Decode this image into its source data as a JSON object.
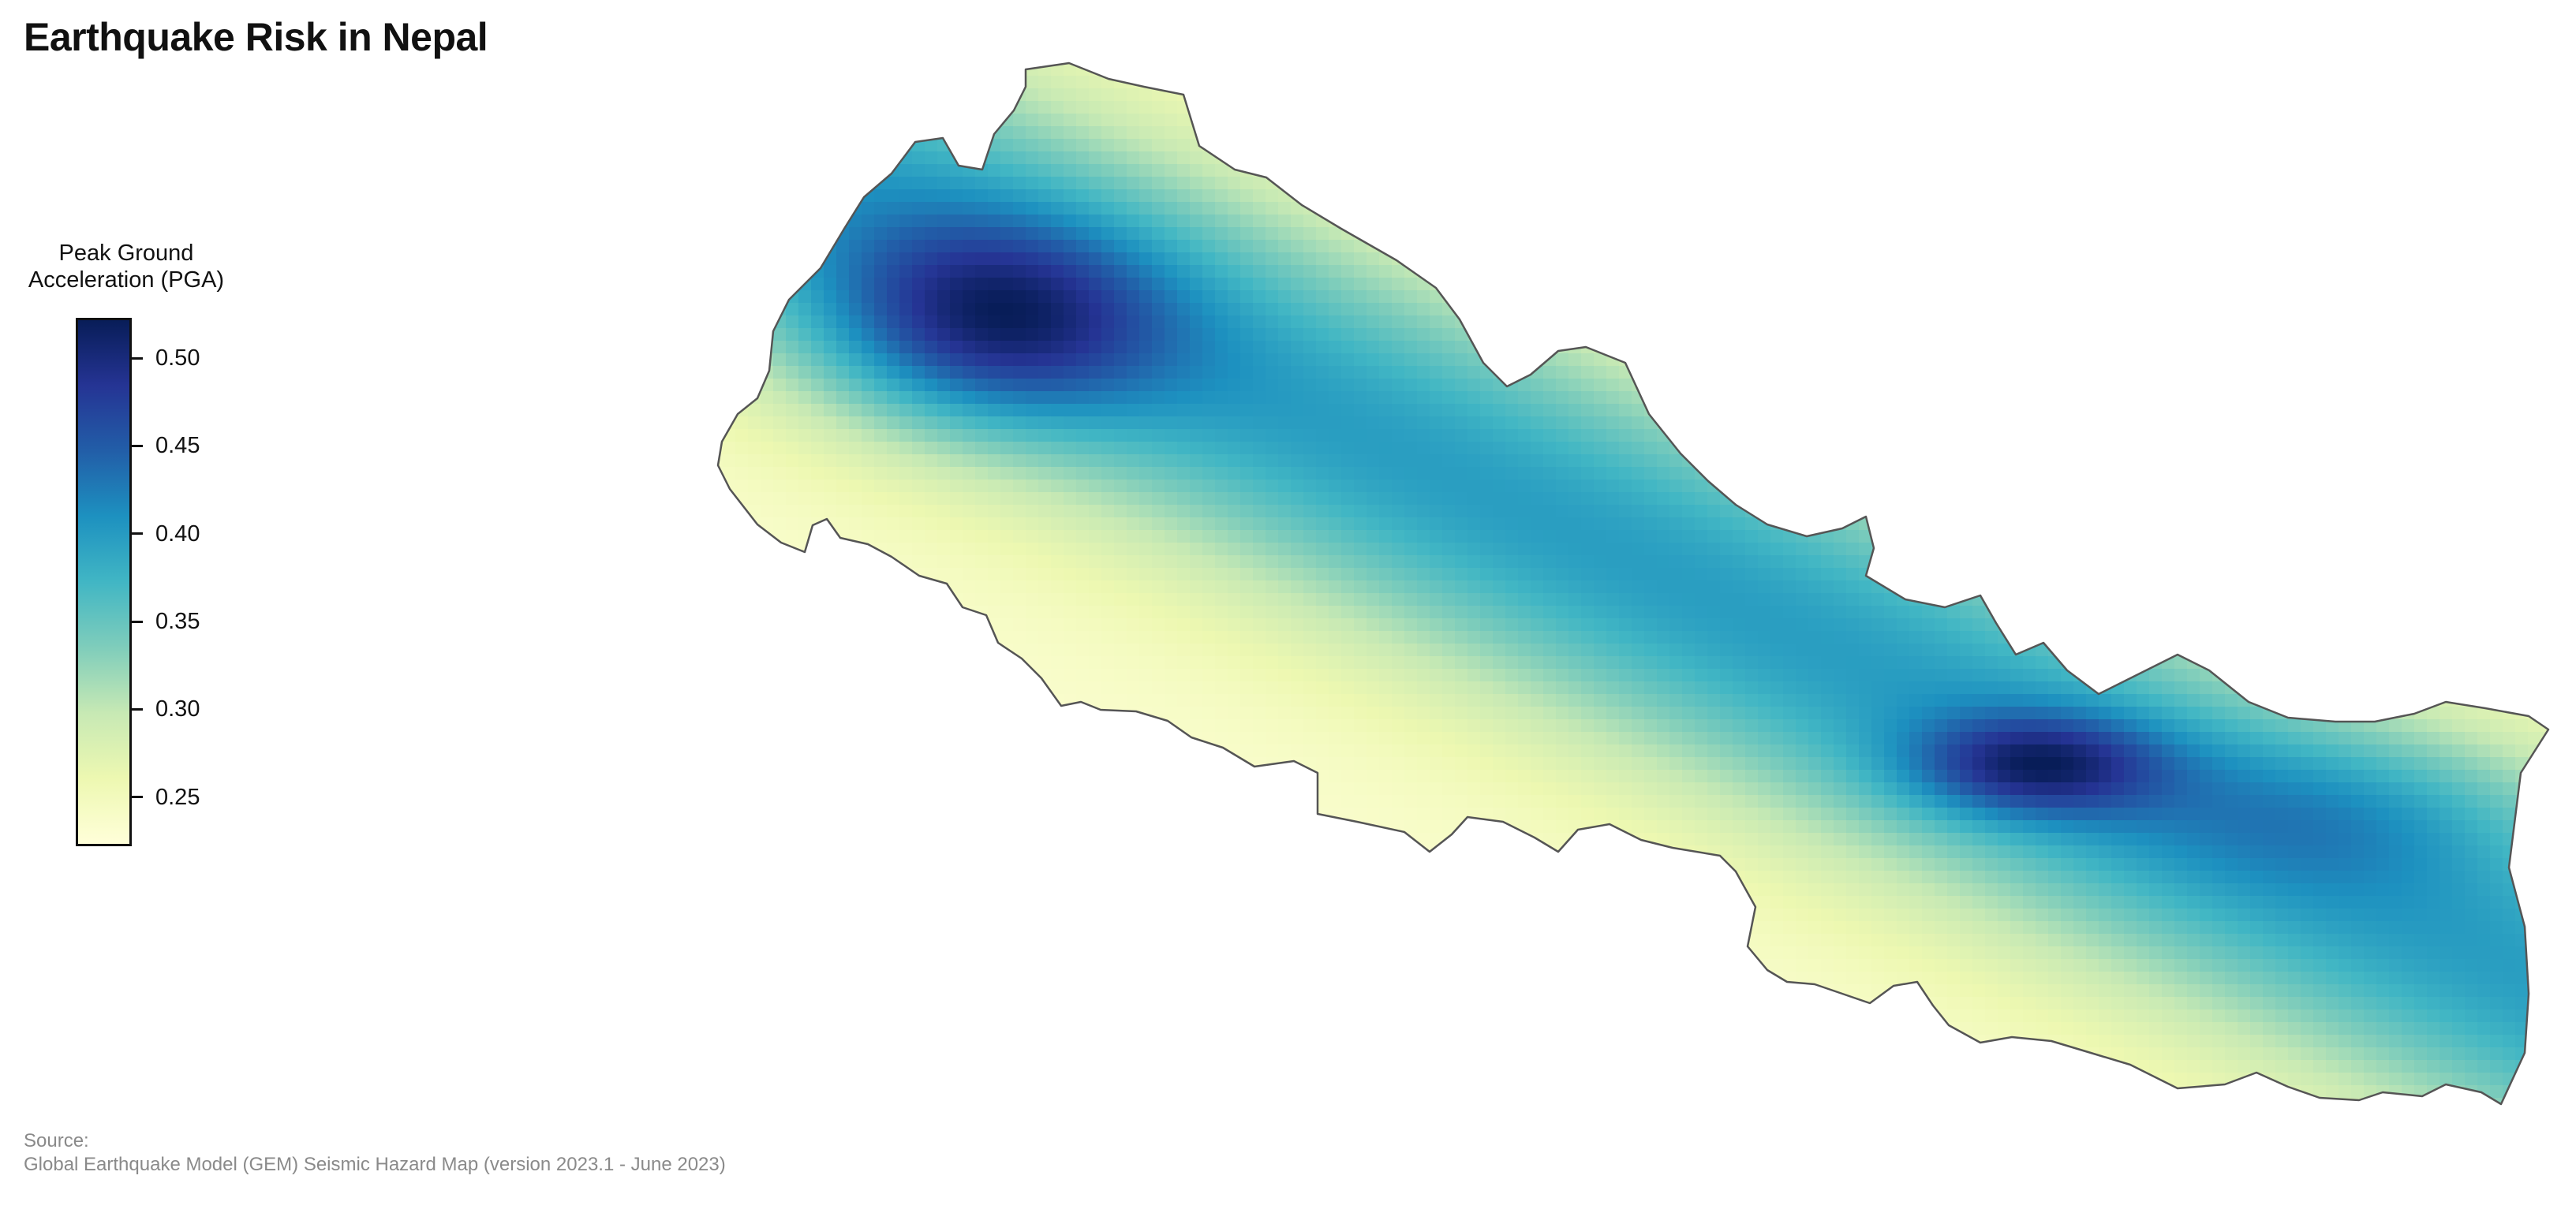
{
  "title": "Earthquake Risk in Nepal",
  "legend": {
    "title_line1": "Peak Ground",
    "title_line2": "Acceleration (PGA)",
    "min": 0.222,
    "max": 0.523,
    "ticks": [
      "0.50",
      "0.45",
      "0.40",
      "0.35",
      "0.30",
      "0.25"
    ],
    "tick_values": [
      0.5,
      0.45,
      0.4,
      0.35,
      0.3,
      0.25
    ],
    "colormap": "YlGnBu",
    "colors": [
      "#ffffd9",
      "#edf8b1",
      "#c7e9b4",
      "#7fcdbb",
      "#41b6c4",
      "#1d91c0",
      "#225ea8",
      "#253494",
      "#081d58"
    ]
  },
  "source": {
    "label": "Source:",
    "text": "Global Earthquake Model (GEM) Seismic Hazard Map (version 2023.1 - June 2023)"
  },
  "map": {
    "region": "Nepal",
    "variable": "Peak Ground Acceleration (PGA)",
    "hotspots": [
      {
        "area": "western Nepal",
        "pga": 0.52
      },
      {
        "area": "eastern Nepal (Kathmandu–Gorkha region)",
        "pga": 0.52
      }
    ],
    "border_color": "#555555"
  }
}
